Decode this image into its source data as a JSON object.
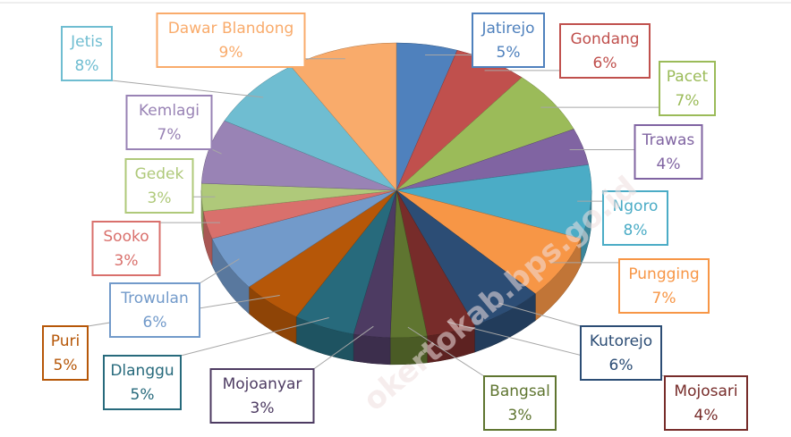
{
  "chart_data": {
    "type": "pie3d",
    "categories": [
      "Jatirejo",
      "Gondang",
      "Pacet",
      "Trawas",
      "Ngoro",
      "Pungging",
      "Kutorejo",
      "Mojosari",
      "Bangsal",
      "Mojoanyar",
      "Dlanggu",
      "Puri",
      "Trowulan",
      "Sooko",
      "Gedek",
      "Kemlagi",
      "Jetis",
      "Dawar Blandong"
    ],
    "values": [
      5,
      6,
      7,
      4,
      8,
      7,
      6,
      4,
      3,
      3,
      5,
      5,
      6,
      3,
      3,
      7,
      8,
      9
    ],
    "value_labels": [
      "5%",
      "6%",
      "7%",
      "4%",
      "8%",
      "7%",
      "6%",
      "4%",
      "3%",
      "3%",
      "5%",
      "5%",
      "6%",
      "3%",
      "3%",
      "7%",
      "8%",
      "9%"
    ],
    "colors": [
      "#4f81bd",
      "#c0504d",
      "#9bbb59",
      "#8064a2",
      "#4bacc6",
      "#f79646",
      "#2c4d75",
      "#772c2a",
      "#5f7530",
      "#4d3b62",
      "#276a7c",
      "#b65708",
      "#729aca",
      "#d9706c",
      "#afc97a",
      "#9983b5",
      "#6fbdd1",
      "#f9ab6b"
    ],
    "watermark": "okertokab.bps.go.id"
  }
}
